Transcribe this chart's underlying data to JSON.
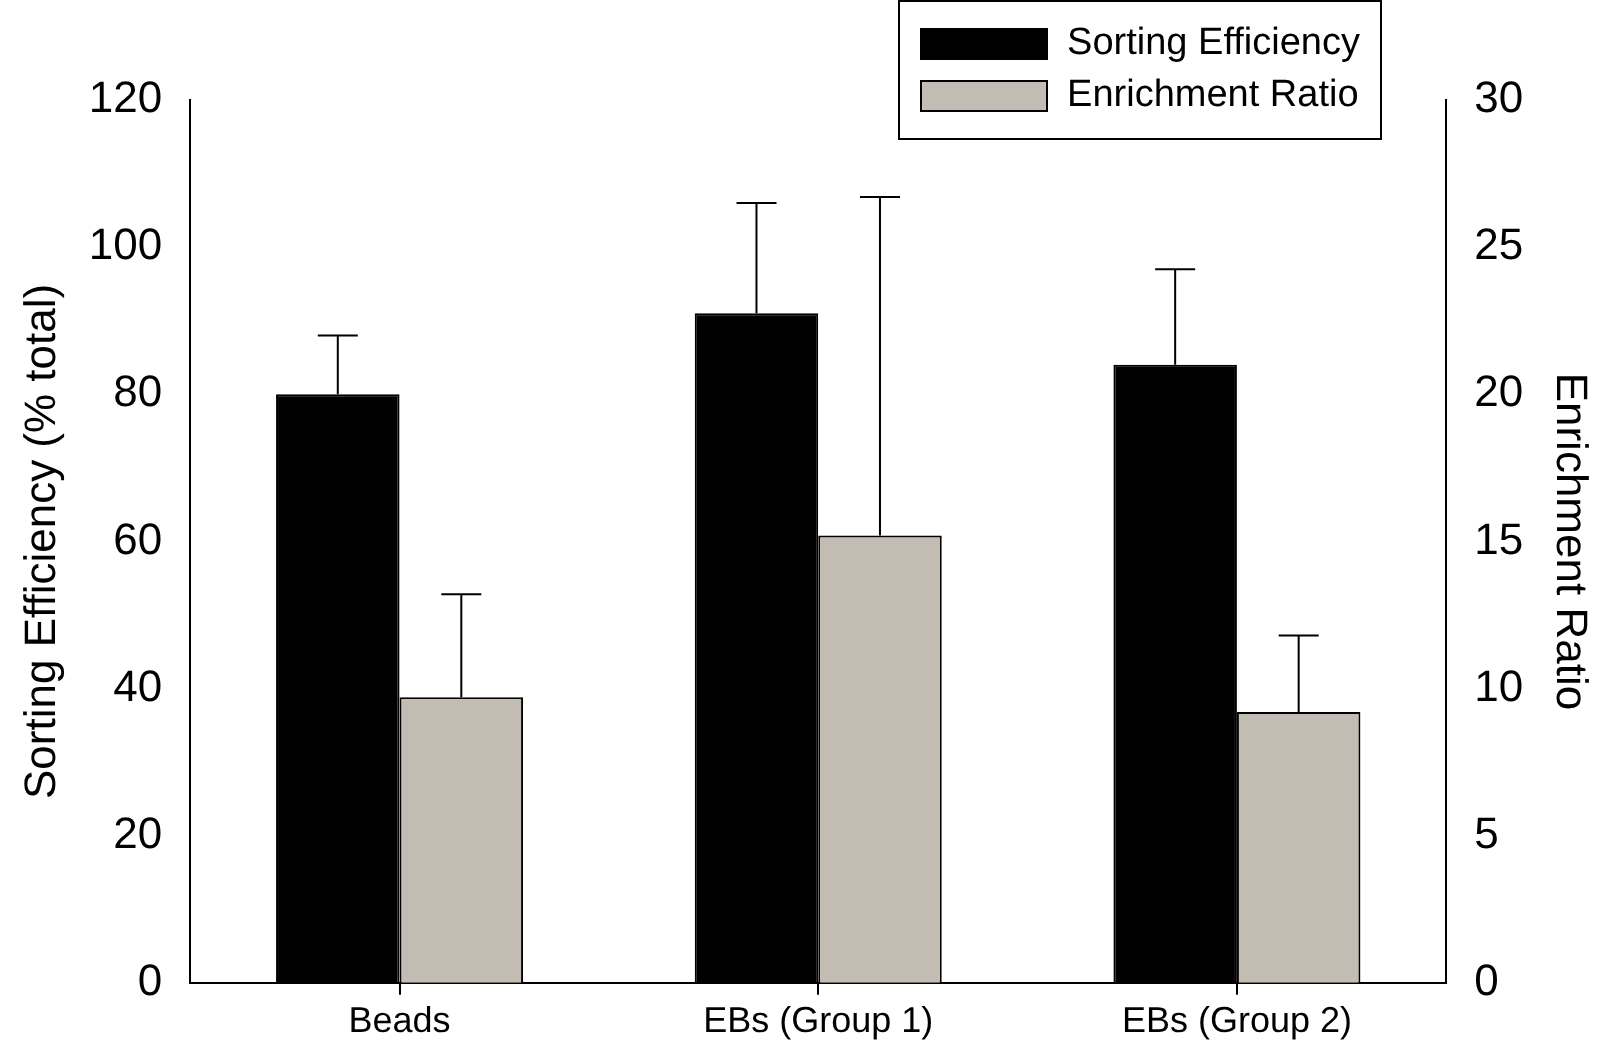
{
  "chart_data": {
    "type": "bar",
    "categories": [
      "Beads",
      "EBs (Group 1)",
      "EBs (Group 2)"
    ],
    "series": [
      {
        "name": "Sorting Efficiency",
        "color": "#000000",
        "values": [
          80,
          91,
          84
        ],
        "errors": [
          [
            80,
            88
          ],
          [
            91,
            106
          ],
          [
            84,
            97
          ]
        ]
      },
      {
        "name": "Enrichment Ratio",
        "color": "#c2bcb2",
        "axis": "y2",
        "values": [
          9.7,
          15.2,
          9.2
        ],
        "errors": [
          [
            9.7,
            13.2
          ],
          [
            15.2,
            26.7
          ],
          [
            9.2,
            11.8
          ]
        ]
      }
    ],
    "ylabel": "Sorting Efficiency (% total)",
    "y2label": "Enrichment Ratio",
    "ylim": [
      0,
      120
    ],
    "yticks": [
      0,
      20,
      40,
      60,
      80,
      100,
      120
    ],
    "y2lim": [
      0,
      30
    ],
    "y2ticks": [
      0,
      5,
      10,
      15,
      20,
      25,
      30
    ],
    "grid": false,
    "legend": "top right"
  }
}
